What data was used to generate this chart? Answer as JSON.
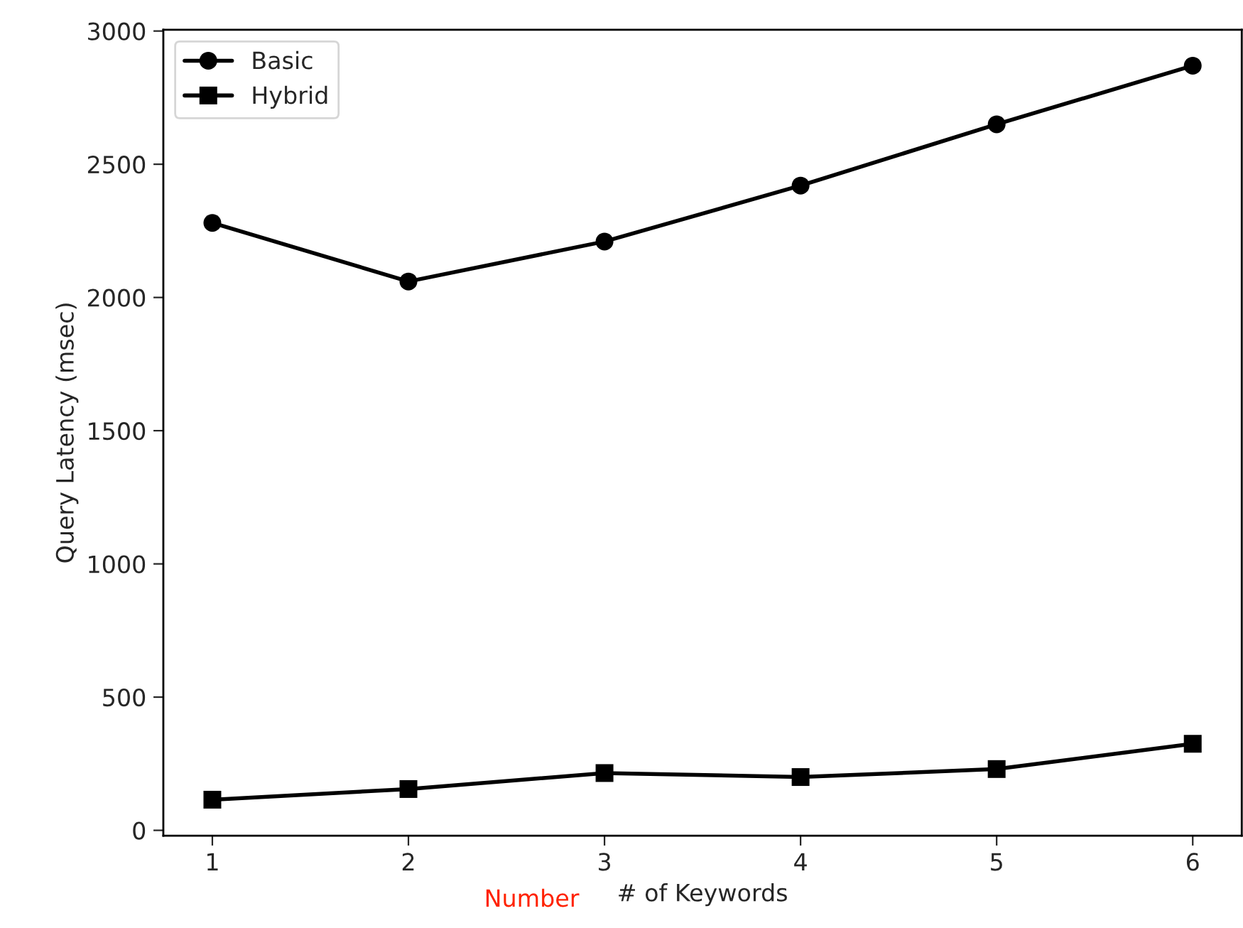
{
  "chart_data": {
    "type": "line",
    "xlabel": "# of Keywords",
    "ylabel": "Query Latency (msec)",
    "x": [
      1,
      2,
      3,
      4,
      5,
      6
    ],
    "series": [
      {
        "name": "Basic",
        "color": "#000000",
        "marker": "circle",
        "values": [
          2280,
          2060,
          2210,
          2420,
          2650,
          2870
        ]
      },
      {
        "name": "Hybrid",
        "color": "#000000",
        "marker": "square",
        "values": [
          115,
          155,
          215,
          200,
          230,
          325
        ]
      }
    ],
    "xlim": [
      0.75,
      6.25
    ],
    "xticks": [
      1,
      2,
      3,
      4,
      5,
      6
    ],
    "ylim": [
      -20,
      3005
    ],
    "yticks": [
      0,
      500,
      1000,
      1500,
      2000,
      2500,
      3000
    ],
    "grid": false,
    "legend": "top left",
    "line_style": "solid",
    "annotations": [
      "Number"
    ]
  }
}
